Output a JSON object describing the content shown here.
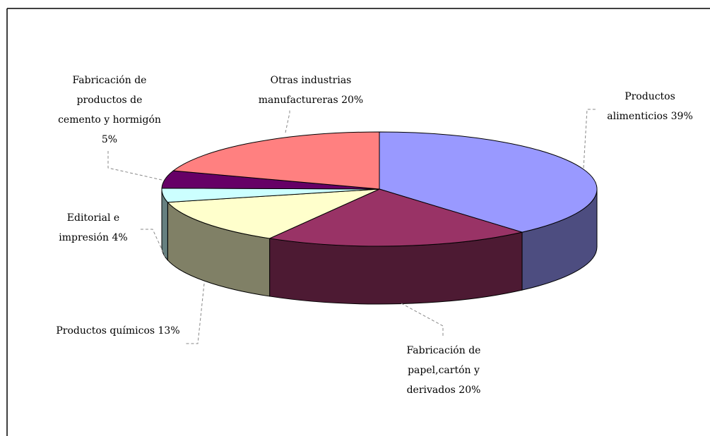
{
  "chart_data": {
    "type": "pie3d",
    "categories": [
      "Productos alimenticios",
      "Fabricación de papel,cartón y derivados",
      "Productos químicos",
      "Editorial e impresión",
      "Fabricación de productos de cemento y hormigón",
      "Otras industrias manufactureras"
    ],
    "values": [
      39,
      20,
      13,
      4,
      5,
      20
    ],
    "value_labels": [
      "39%",
      "20%",
      "13%",
      "4%",
      "5%",
      "20%"
    ],
    "colors": [
      "#9999ff",
      "#993366",
      "#ffffcc",
      "#ccffff",
      "#660066",
      "#ff8080"
    ],
    "side_colors": [
      "#4d4d80",
      "#4d1a33",
      "#808066",
      "#668080",
      "#330033",
      "#804040"
    ],
    "start_angle": 90,
    "direction": "clockwise"
  }
}
